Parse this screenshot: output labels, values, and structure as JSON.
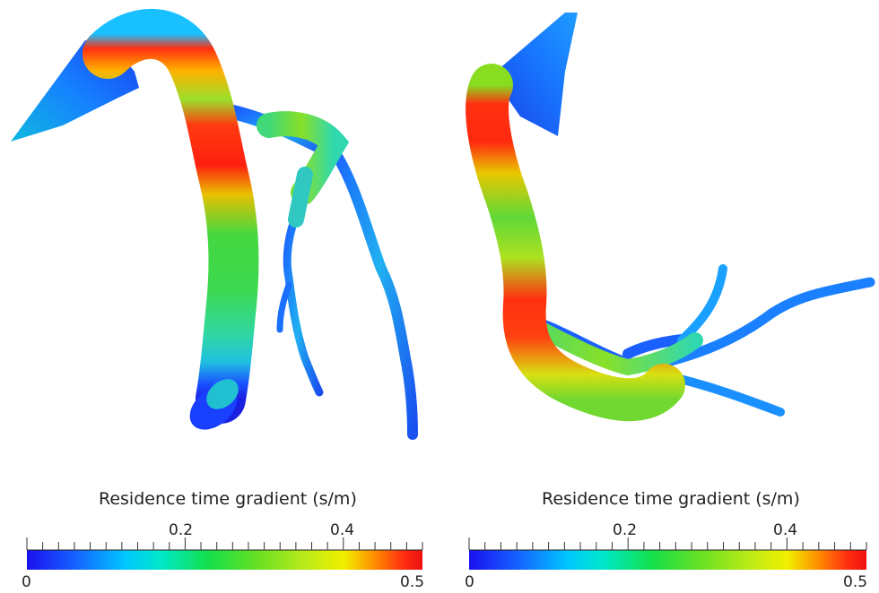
{
  "colormap": {
    "stops": [
      "#1a10f0",
      "#1560ff",
      "#00c8ff",
      "#00e8c8",
      "#14e04a",
      "#66e024",
      "#b8ea18",
      "#f0f000",
      "#ff8c00",
      "#ff3010",
      "#ee1010"
    ]
  },
  "left_panel": {
    "colorbar": {
      "title": "Residence time gradient (s/m)",
      "min_label": "0",
      "max_label": "0.5",
      "mid_labels": [
        "0.2",
        "0.4"
      ]
    }
  },
  "right_panel": {
    "colorbar": {
      "title": "Residence time gradient (s/m)",
      "min_label": "0",
      "max_label": "0.5",
      "mid_labels": [
        "0.2",
        "0.4"
      ]
    }
  }
}
